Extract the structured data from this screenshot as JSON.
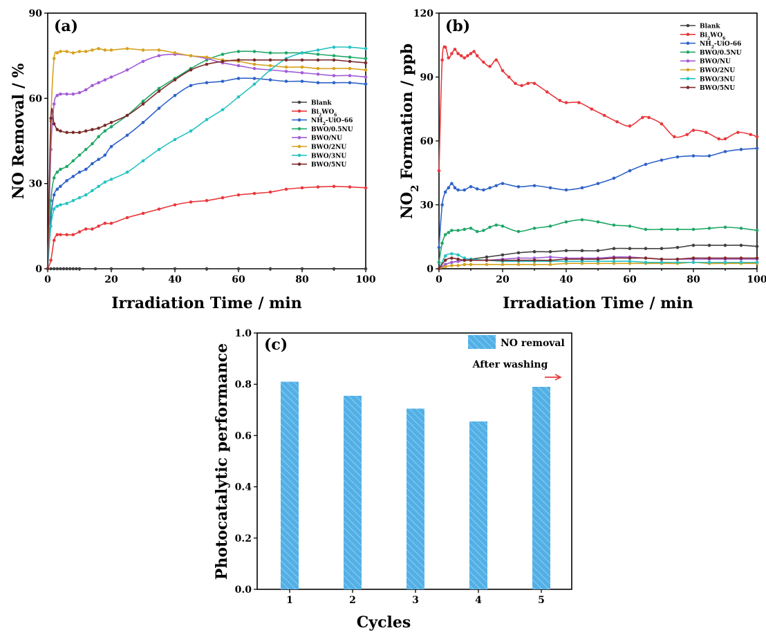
{
  "chart_data": [
    {
      "type": "line",
      "panel_label": "(a)",
      "xlabel": "Irradiation Time / min",
      "ylabel": "NO Removal / %",
      "xlim": [
        0,
        100
      ],
      "ylim": [
        0,
        90
      ],
      "xticks": [
        "0",
        "20",
        "40",
        "60",
        "80",
        "100"
      ],
      "yticks": [
        "0",
        "30",
        "60",
        "90"
      ],
      "legend_position": "right-middle",
      "series": [
        {
          "name": "Blank",
          "color": "#404040",
          "x": [
            0,
            1,
            2,
            3,
            4,
            5,
            6,
            7,
            8,
            9,
            10,
            15,
            20,
            30,
            40,
            50,
            60,
            70,
            80,
            90,
            100
          ],
          "y": [
            0,
            0,
            0,
            0,
            0,
            0,
            0,
            0,
            0,
            0,
            0,
            0,
            0,
            0,
            0,
            0,
            0,
            0,
            0,
            0,
            0
          ]
        },
        {
          "name": "Bi2WO6",
          "color": "#e8383d",
          "x": [
            0,
            1,
            2,
            3,
            4,
            6,
            8,
            10,
            12,
            14,
            16,
            18,
            20,
            25,
            30,
            35,
            40,
            45,
            50,
            55,
            60,
            65,
            70,
            75,
            80,
            85,
            90,
            95,
            100
          ],
          "y": [
            0,
            3,
            10,
            12,
            12,
            12,
            12,
            13,
            14,
            14,
            15,
            16,
            16,
            18,
            19.5,
            21,
            22.5,
            23.5,
            24,
            25,
            26,
            26.5,
            27,
            28,
            28.5,
            28.8,
            29,
            28.8,
            28.5
          ]
        },
        {
          "name": "NH2-UiO-66",
          "color": "#2f62c8",
          "x": [
            0,
            1,
            2,
            3,
            4,
            6,
            8,
            10,
            12,
            14,
            16,
            18,
            20,
            25,
            30,
            35,
            40,
            45,
            50,
            55,
            60,
            65,
            70,
            75,
            80,
            85,
            90,
            95,
            100
          ],
          "y": [
            0,
            18,
            26,
            28,
            29,
            31,
            32.5,
            34,
            35,
            37,
            38.5,
            40,
            43,
            47,
            51.5,
            56.5,
            61,
            64.5,
            65.5,
            66,
            67,
            67,
            66.5,
            66,
            66,
            65.5,
            65.5,
            65.5,
            65
          ]
        },
        {
          "name": "BWO/0.5NU",
          "color": "#1fa767",
          "x": [
            0,
            1,
            2,
            3,
            4,
            6,
            8,
            10,
            12,
            14,
            16,
            18,
            20,
            25,
            30,
            35,
            40,
            45,
            50,
            55,
            60,
            65,
            70,
            75,
            80,
            85,
            90,
            95,
            100
          ],
          "y": [
            0,
            24,
            32,
            34,
            35,
            36,
            38,
            40,
            42,
            44,
            46.5,
            48.5,
            50,
            54,
            59,
            63.5,
            67,
            70.5,
            73.5,
            75.5,
            76.5,
            76.5,
            76,
            76,
            76,
            75.5,
            75,
            74.5,
            74
          ]
        },
        {
          "name": "BWO/NU",
          "color": "#a35cd6",
          "x": [
            0,
            1,
            2,
            3,
            4,
            6,
            8,
            10,
            12,
            14,
            16,
            18,
            20,
            25,
            30,
            35,
            40,
            45,
            50,
            55,
            60,
            65,
            70,
            75,
            80,
            85,
            90,
            95,
            100
          ],
          "y": [
            0,
            42,
            58,
            61,
            61.5,
            61.5,
            61.5,
            62,
            63,
            64.5,
            65.5,
            66.5,
            67.5,
            70,
            73,
            75,
            75.5,
            75,
            74,
            72.5,
            71.5,
            70.5,
            70,
            69.5,
            69,
            68.5,
            68,
            68,
            67.5
          ]
        },
        {
          "name": "BWO/2NU",
          "color": "#d6a21e",
          "x": [
            0,
            1,
            2,
            3,
            4,
            6,
            8,
            10,
            12,
            14,
            16,
            18,
            20,
            25,
            30,
            35,
            40,
            45,
            50,
            55,
            60,
            65,
            70,
            75,
            80,
            85,
            90,
            95,
            100
          ],
          "y": [
            0,
            52,
            74,
            76,
            76.5,
            76.5,
            76,
            76.5,
            76.5,
            77,
            77.5,
            77,
            77,
            77.5,
            77,
            77,
            76,
            75,
            74.5,
            73.5,
            73,
            72,
            71.5,
            71,
            71,
            70.5,
            70.5,
            70.5,
            70
          ]
        },
        {
          "name": "BWO/3NU",
          "color": "#26c2c2",
          "x": [
            0,
            1,
            2,
            3,
            4,
            6,
            8,
            10,
            12,
            14,
            16,
            18,
            20,
            25,
            30,
            35,
            40,
            45,
            50,
            55,
            60,
            65,
            70,
            75,
            80,
            85,
            90,
            95,
            100
          ],
          "y": [
            0,
            15,
            21,
            22,
            22.5,
            23,
            24,
            25,
            26,
            27.5,
            29,
            30.5,
            31.5,
            34,
            38,
            42,
            45.5,
            48.5,
            52.5,
            56,
            60.5,
            65,
            70,
            74,
            76,
            77,
            78,
            78,
            77.5
          ]
        },
        {
          "name": "BWO/5NU",
          "color": "#7a2a2a",
          "x": [
            0,
            1,
            2,
            3,
            4,
            6,
            8,
            10,
            12,
            14,
            16,
            18,
            20,
            25,
            30,
            35,
            40,
            45,
            50,
            55,
            60,
            65,
            70,
            75,
            80,
            85,
            90,
            95,
            100
          ],
          "y": [
            0,
            53,
            51,
            49,
            48.5,
            48,
            48,
            48,
            48.5,
            49,
            49.5,
            50.5,
            51.5,
            54,
            58,
            62.5,
            66.5,
            70,
            72,
            73,
            73.5,
            73.5,
            73.5,
            73.5,
            73.5,
            73.5,
            73.5,
            73,
            72.5
          ]
        }
      ]
    },
    {
      "type": "line",
      "panel_label": "(b)",
      "xlabel": "Irradiation Time / min",
      "ylabel": "NO2 Formation / ppb",
      "xlim": [
        0,
        100
      ],
      "ylim": [
        0,
        120
      ],
      "xticks": [
        "0",
        "20",
        "40",
        "60",
        "80",
        "100"
      ],
      "yticks": [
        "0",
        "30",
        "60",
        "90",
        "120"
      ],
      "legend_position": "top-right",
      "series": [
        {
          "name": "Blank",
          "color": "#404040",
          "x": [
            0,
            2,
            4,
            6,
            8,
            10,
            15,
            20,
            25,
            30,
            35,
            40,
            45,
            50,
            55,
            60,
            65,
            70,
            75,
            80,
            85,
            90,
            95,
            100
          ],
          "y": [
            0,
            2,
            3,
            3.5,
            4,
            4.5,
            5.5,
            6.5,
            7.5,
            8,
            8,
            8.5,
            8.5,
            8.5,
            9.5,
            9.5,
            9.5,
            9.5,
            10,
            11,
            11,
            11,
            11,
            10.5
          ]
        },
        {
          "name": "Bi2WO6",
          "color": "#e8383d",
          "x": [
            0,
            1,
            2,
            3,
            4,
            5,
            6,
            7,
            8,
            9,
            10,
            11,
            12,
            14,
            16,
            18,
            20,
            22,
            24,
            26,
            28,
            30,
            34,
            38,
            40,
            44,
            48,
            52,
            56,
            60,
            64,
            66,
            70,
            74,
            78,
            80,
            84,
            88,
            90,
            94,
            98,
            100
          ],
          "y": [
            46,
            98,
            104,
            99,
            101,
            103,
            101,
            100,
            99,
            100,
            101,
            102,
            100,
            97,
            95,
            98,
            93,
            90,
            87,
            86,
            87,
            87,
            83,
            79,
            78,
            78,
            75,
            72,
            69,
            67,
            71,
            71,
            68,
            62,
            63,
            65,
            64,
            61,
            61,
            64,
            63,
            62
          ]
        },
        {
          "name": "NH2-UiO-66",
          "color": "#2f62c8",
          "x": [
            0,
            1,
            2,
            3,
            4,
            5,
            6,
            8,
            10,
            12,
            14,
            16,
            18,
            20,
            25,
            30,
            35,
            40,
            45,
            50,
            55,
            60,
            65,
            70,
            75,
            80,
            85,
            90,
            95,
            100
          ],
          "y": [
            10,
            30,
            36,
            38,
            40,
            38,
            37,
            37,
            38.5,
            37.5,
            37,
            38,
            39,
            40,
            38.5,
            39,
            38,
            37,
            38,
            40,
            42.5,
            46,
            49,
            51,
            52.5,
            53,
            53,
            55,
            56,
            56.5
          ]
        },
        {
          "name": "BWO/0.5NU",
          "color": "#1fa767",
          "x": [
            0,
            1,
            2,
            3,
            4,
            6,
            8,
            10,
            12,
            14,
            16,
            18,
            20,
            25,
            30,
            35,
            40,
            45,
            50,
            55,
            60,
            65,
            70,
            75,
            80,
            85,
            90,
            95,
            100
          ],
          "y": [
            3,
            12,
            16,
            17,
            18,
            18,
            18.5,
            19,
            17.5,
            18,
            19.5,
            20.5,
            20,
            17.5,
            19,
            20,
            22,
            23,
            22,
            20.5,
            20,
            18.5,
            18.5,
            18.5,
            18.5,
            19,
            19.5,
            19,
            18
          ]
        },
        {
          "name": "BWO/NU",
          "color": "#a35cd6",
          "x": [
            0,
            2,
            4,
            6,
            8,
            10,
            15,
            20,
            25,
            30,
            35,
            40,
            45,
            50,
            55,
            60,
            65,
            70,
            75,
            80,
            85,
            90,
            95,
            100
          ],
          "y": [
            0,
            2,
            3,
            3.5,
            4,
            4,
            4,
            4.5,
            5,
            5,
            5.5,
            5,
            5,
            5,
            5.5,
            5.5,
            5,
            4.5,
            4.5,
            4.5,
            4.5,
            4.5,
            4.5,
            4.5
          ]
        },
        {
          "name": "BWO/2NU",
          "color": "#d6a21e",
          "x": [
            0,
            2,
            4,
            6,
            8,
            10,
            15,
            20,
            25,
            30,
            35,
            40,
            45,
            50,
            55,
            60,
            65,
            70,
            75,
            80,
            85,
            90,
            95,
            100
          ],
          "y": [
            0,
            1,
            1.5,
            1.5,
            2,
            2,
            2,
            2,
            2,
            2,
            2,
            2.5,
            2.5,
            2.5,
            2.5,
            2.5,
            2.5,
            2.5,
            2.5,
            3,
            2.5,
            2.5,
            2.5,
            2.5
          ]
        },
        {
          "name": "BWO/3NU",
          "color": "#26c2c2",
          "x": [
            0,
            2,
            4,
            6,
            8,
            10,
            15,
            20,
            25,
            30,
            35,
            40,
            45,
            50,
            55,
            60,
            65,
            70,
            75,
            80,
            85,
            90,
            95,
            100
          ],
          "y": [
            0,
            6,
            7,
            6.5,
            5,
            4.5,
            4,
            3.5,
            3.5,
            3.5,
            3.5,
            3.5,
            3.5,
            3.5,
            3.5,
            3.5,
            3,
            3,
            3,
            3,
            3,
            3,
            3,
            3
          ]
        },
        {
          "name": "BWO/5NU",
          "color": "#7a2a2a",
          "x": [
            0,
            2,
            4,
            6,
            8,
            10,
            15,
            20,
            25,
            30,
            35,
            40,
            45,
            50,
            55,
            60,
            65,
            70,
            75,
            80,
            85,
            90,
            95,
            100
          ],
          "y": [
            0,
            4,
            5,
            4.5,
            4,
            4,
            4,
            4,
            4,
            4,
            4,
            4.5,
            4.5,
            4.5,
            5,
            5,
            5,
            4.5,
            4.5,
            5,
            5,
            5,
            5,
            5
          ]
        }
      ]
    },
    {
      "type": "bar",
      "panel_label": "(c)",
      "xlabel": "Cycles",
      "ylabel": "Photocatalytic performance",
      "categories": [
        "1",
        "2",
        "3",
        "4",
        "5"
      ],
      "ylim": [
        0,
        1.0
      ],
      "yticks": [
        "0.0",
        "0.2",
        "0.4",
        "0.6",
        "0.8",
        "1.0"
      ],
      "series": [
        {
          "name": "NO removal",
          "color": "#52b0e6",
          "values": [
            0.81,
            0.755,
            0.705,
            0.655,
            0.79
          ]
        }
      ],
      "annotation": "After washing",
      "annotation_color": "#e8383d",
      "legend_position": "top-right"
    }
  ]
}
